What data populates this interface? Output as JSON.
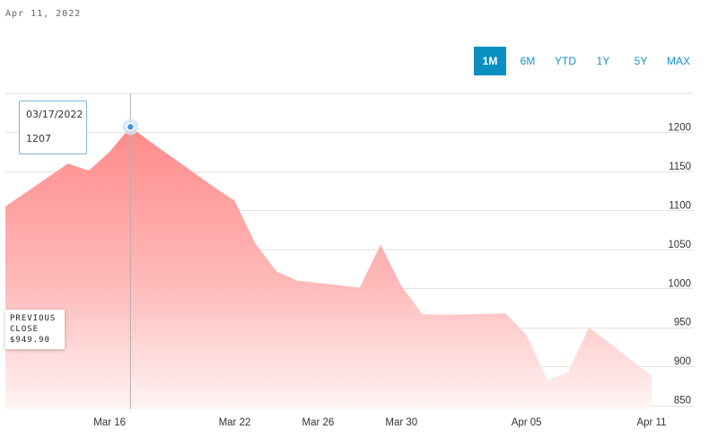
{
  "header": {
    "date": "Apr 11, 2022"
  },
  "ranges": [
    {
      "label": "1M",
      "active": true
    },
    {
      "label": "6M",
      "active": false
    },
    {
      "label": "YTD",
      "active": false
    },
    {
      "label": "1Y",
      "active": false
    },
    {
      "label": "5Y",
      "active": false
    },
    {
      "label": "MAX",
      "active": false
    }
  ],
  "tooltip": {
    "date": "03/17/2022",
    "value": "1207"
  },
  "previous_close": {
    "label_line1": "PREVIOUS",
    "label_line2": "CLOSE",
    "value": "$949.90"
  },
  "colors": {
    "accent": "#0b8fc0",
    "area_top": "#ff8a8a",
    "area_bottom": "#fff4f4",
    "tooltip_border": "#7fb6dd"
  },
  "chart_data": {
    "type": "area",
    "x": [
      "2022-03-11",
      "2022-03-14",
      "2022-03-15",
      "2022-03-16",
      "2022-03-17",
      "2022-03-18",
      "2022-03-21",
      "2022-03-22",
      "2022-03-23",
      "2022-03-24",
      "2022-03-25",
      "2022-03-28",
      "2022-03-29",
      "2022-03-30",
      "2022-03-31",
      "2022-04-01",
      "2022-04-04",
      "2022-04-05",
      "2022-04-06",
      "2022-04-07",
      "2022-04-08",
      "2022-04-11"
    ],
    "values": [
      1105,
      1160,
      1151,
      1175,
      1207,
      1187,
      1130,
      1112,
      1057,
      1022,
      1010,
      1001,
      1056,
      1003,
      967,
      966,
      968,
      940,
      882,
      893,
      950,
      888
    ],
    "xticks": [
      "Mar 16",
      "Mar 22",
      "Mar 26",
      "Mar 30",
      "Apr 05",
      "Apr 11"
    ],
    "yticks": [
      850,
      900,
      950,
      1000,
      1050,
      1100,
      1150,
      1200
    ],
    "ylim": [
      845,
      1250
    ],
    "grid": true,
    "highlight": {
      "x": "2022-03-17",
      "y": 1207
    }
  }
}
